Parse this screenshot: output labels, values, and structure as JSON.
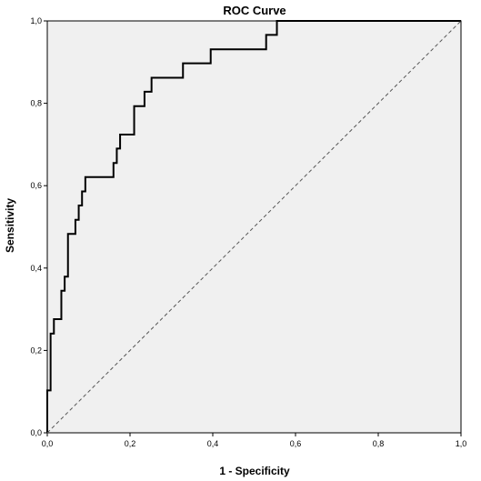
{
  "chart_data": {
    "type": "line",
    "title": "ROC Curve",
    "xlabel": "1 - Specificity",
    "ylabel": "Sensitivity",
    "xlim": [
      0,
      1
    ],
    "ylim": [
      0,
      1
    ],
    "x_ticks": [
      "0,0",
      "0,2",
      "0,4",
      "0,6",
      "0,8",
      "1,0"
    ],
    "y_ticks": [
      "0,0",
      "0,2",
      "0,4",
      "0,6",
      "0,8",
      "1,0"
    ],
    "grid": false,
    "legend": "none",
    "series": [
      {
        "style": "step",
        "color": "#000000",
        "x": [
          0.0,
          0.0,
          0.008,
          0.008,
          0.016,
          0.016,
          0.034,
          0.034,
          0.042,
          0.042,
          0.05,
          0.05,
          0.068,
          0.068,
          0.076,
          0.076,
          0.084,
          0.084,
          0.092,
          0.092,
          0.16,
          0.16,
          0.168,
          0.168,
          0.176,
          0.176,
          0.21,
          0.21,
          0.235,
          0.235,
          0.252,
          0.252,
          0.328,
          0.328,
          0.395,
          0.395,
          0.529,
          0.529,
          0.555,
          0.555,
          0.645,
          0.645,
          1.0
        ],
        "y": [
          0.0,
          0.103,
          0.103,
          0.241,
          0.241,
          0.276,
          0.276,
          0.345,
          0.345,
          0.379,
          0.379,
          0.483,
          0.483,
          0.517,
          0.517,
          0.552,
          0.552,
          0.586,
          0.586,
          0.621,
          0.621,
          0.655,
          0.655,
          0.69,
          0.69,
          0.724,
          0.724,
          0.793,
          0.793,
          0.828,
          0.828,
          0.862,
          0.862,
          0.897,
          0.897,
          0.931,
          0.931,
          0.966,
          0.966,
          1.0,
          1.0,
          1.0,
          1.0
        ]
      },
      {
        "style": "dashed",
        "color": "#555555",
        "x": [
          0,
          1
        ],
        "y": [
          0,
          1
        ]
      }
    ]
  }
}
